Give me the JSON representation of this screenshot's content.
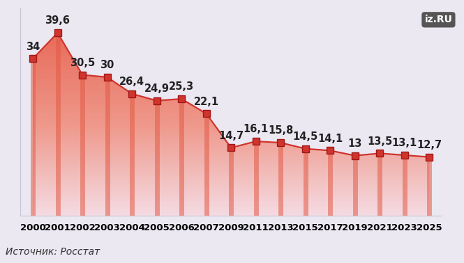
{
  "chart_data": {
    "type": "line",
    "categories": [
      "2000",
      "2001",
      "2002",
      "2003",
      "2004",
      "2005",
      "2006",
      "2007",
      "2009",
      "2011",
      "2013",
      "2015",
      "2017",
      "2019",
      "2021",
      "2023",
      "2025"
    ],
    "values": [
      34,
      39.6,
      30.5,
      30,
      26.4,
      24.9,
      25.3,
      22.1,
      14.7,
      16.1,
      15.8,
      14.5,
      14.1,
      13,
      13.5,
      13.1,
      12.7
    ],
    "value_labels": [
      "34",
      "39,6",
      "30,5",
      "30",
      "26,4",
      "24,9",
      "25,3",
      "22,1",
      "14,7",
      "16,1",
      "15,8",
      "14,5",
      "14,1",
      "13",
      "13,5",
      "13,1",
      "12,7"
    ],
    "ylim": [
      0,
      45
    ],
    "color": "#d0342c",
    "marker": "square",
    "data_labels": true,
    "tick_labels": "x",
    "grid": false,
    "source": "Источник: Росстат",
    "logo": "iz.RU"
  }
}
